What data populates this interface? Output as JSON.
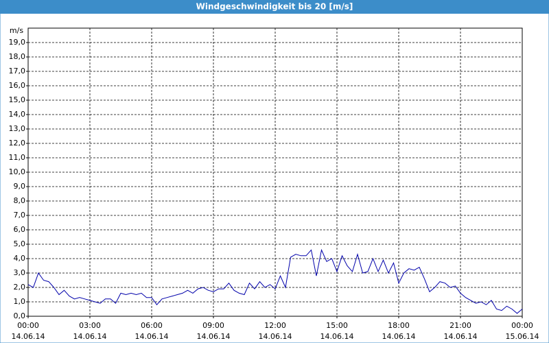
{
  "chart_data": {
    "type": "line",
    "title": "Windgeschwindigkeit bis 20 [m/s]",
    "y_label": "m/s",
    "xlim": [
      0,
      24
    ],
    "xticks": [
      {
        "value": 0,
        "label": "00:00",
        "date": "14.06.14"
      },
      {
        "value": 3,
        "label": "03:00",
        "date": "14.06.14"
      },
      {
        "value": 6,
        "label": "06:00",
        "date": "14.06.14"
      },
      {
        "value": 9,
        "label": "09:00",
        "date": "14.06.14"
      },
      {
        "value": 12,
        "label": "12:00",
        "date": "14.06.14"
      },
      {
        "value": 15,
        "label": "15:00",
        "date": "14.06.14"
      },
      {
        "value": 18,
        "label": "18:00",
        "date": "14.06.14"
      },
      {
        "value": 21,
        "label": "21:00",
        "date": "14.06.14"
      },
      {
        "value": 24,
        "label": "00:00",
        "date": "15.06.14"
      }
    ],
    "ylim": [
      0,
      20
    ],
    "yticks": [
      {
        "value": 0,
        "label": "0,0"
      },
      {
        "value": 1,
        "label": "1,0"
      },
      {
        "value": 2,
        "label": "2,0"
      },
      {
        "value": 3,
        "label": "3,0"
      },
      {
        "value": 4,
        "label": "4,0"
      },
      {
        "value": 5,
        "label": "5,0"
      },
      {
        "value": 6,
        "label": "6,0"
      },
      {
        "value": 7,
        "label": "7,0"
      },
      {
        "value": 8,
        "label": "8,0"
      },
      {
        "value": 9,
        "label": "9,0"
      },
      {
        "value": 10,
        "label": "10,0"
      },
      {
        "value": 11,
        "label": "11,0"
      },
      {
        "value": 12,
        "label": "12,0"
      },
      {
        "value": 13,
        "label": "13,0"
      },
      {
        "value": 14,
        "label": "14,0"
      },
      {
        "value": 15,
        "label": "15,0"
      },
      {
        "value": 16,
        "label": "16,0"
      },
      {
        "value": 17,
        "label": "17,0"
      },
      {
        "value": 18,
        "label": "18,0"
      },
      {
        "value": 19,
        "label": "19,0"
      }
    ],
    "grid": true,
    "x": [
      0,
      0.25,
      0.5,
      0.75,
      1,
      1.25,
      1.5,
      1.75,
      2,
      2.25,
      2.5,
      2.75,
      3,
      3.25,
      3.5,
      3.75,
      4,
      4.25,
      4.5,
      4.75,
      5,
      5.25,
      5.5,
      5.75,
      6,
      6.25,
      6.5,
      6.75,
      7,
      7.25,
      7.5,
      7.75,
      8,
      8.25,
      8.5,
      8.75,
      9,
      9.25,
      9.5,
      9.75,
      10,
      10.25,
      10.5,
      10.75,
      11,
      11.25,
      11.5,
      11.75,
      12,
      12.25,
      12.5,
      12.75,
      13,
      13.25,
      13.5,
      13.75,
      14,
      14.25,
      14.5,
      14.75,
      15,
      15.25,
      15.5,
      15.75,
      16,
      16.25,
      16.5,
      16.75,
      17,
      17.25,
      17.5,
      17.75,
      18,
      18.25,
      18.5,
      18.75,
      19,
      19.25,
      19.5,
      19.75,
      20,
      20.25,
      20.5,
      20.75,
      21,
      21.25,
      21.5,
      21.75,
      22,
      22.25,
      22.5,
      22.75,
      23,
      23.25,
      23.5,
      23.75,
      24
    ],
    "series": [
      {
        "color": "#0000aa",
        "values": [
          2.2,
          2.0,
          3.0,
          2.5,
          2.4,
          2.0,
          1.5,
          1.8,
          1.4,
          1.2,
          1.3,
          1.2,
          1.1,
          1.0,
          0.9,
          1.2,
          1.2,
          0.9,
          1.6,
          1.5,
          1.6,
          1.5,
          1.6,
          1.3,
          1.3,
          0.8,
          1.2,
          1.3,
          1.4,
          1.5,
          1.6,
          1.8,
          1.6,
          1.9,
          2.0,
          1.8,
          1.7,
          1.9,
          1.9,
          2.3,
          1.8,
          1.6,
          1.5,
          2.3,
          1.9,
          2.4,
          2.0,
          2.2,
          1.9,
          2.8,
          2.0,
          4.1,
          4.3,
          4.2,
          4.2,
          4.6,
          2.8,
          4.6,
          3.8,
          4.0,
          3.1,
          4.2,
          3.5,
          3.1,
          4.3,
          3.0,
          3.1,
          4.0,
          3.1,
          3.9,
          3.0,
          3.7,
          2.3,
          3.0,
          3.3,
          3.2,
          3.4,
          2.6,
          1.7,
          2.0,
          2.4,
          2.3,
          2.0,
          2.1,
          1.6,
          1.3,
          1.1,
          0.9,
          1.0,
          0.8,
          1.1,
          0.5,
          0.4,
          0.7,
          0.5,
          0.2,
          0.5
        ]
      }
    ]
  }
}
